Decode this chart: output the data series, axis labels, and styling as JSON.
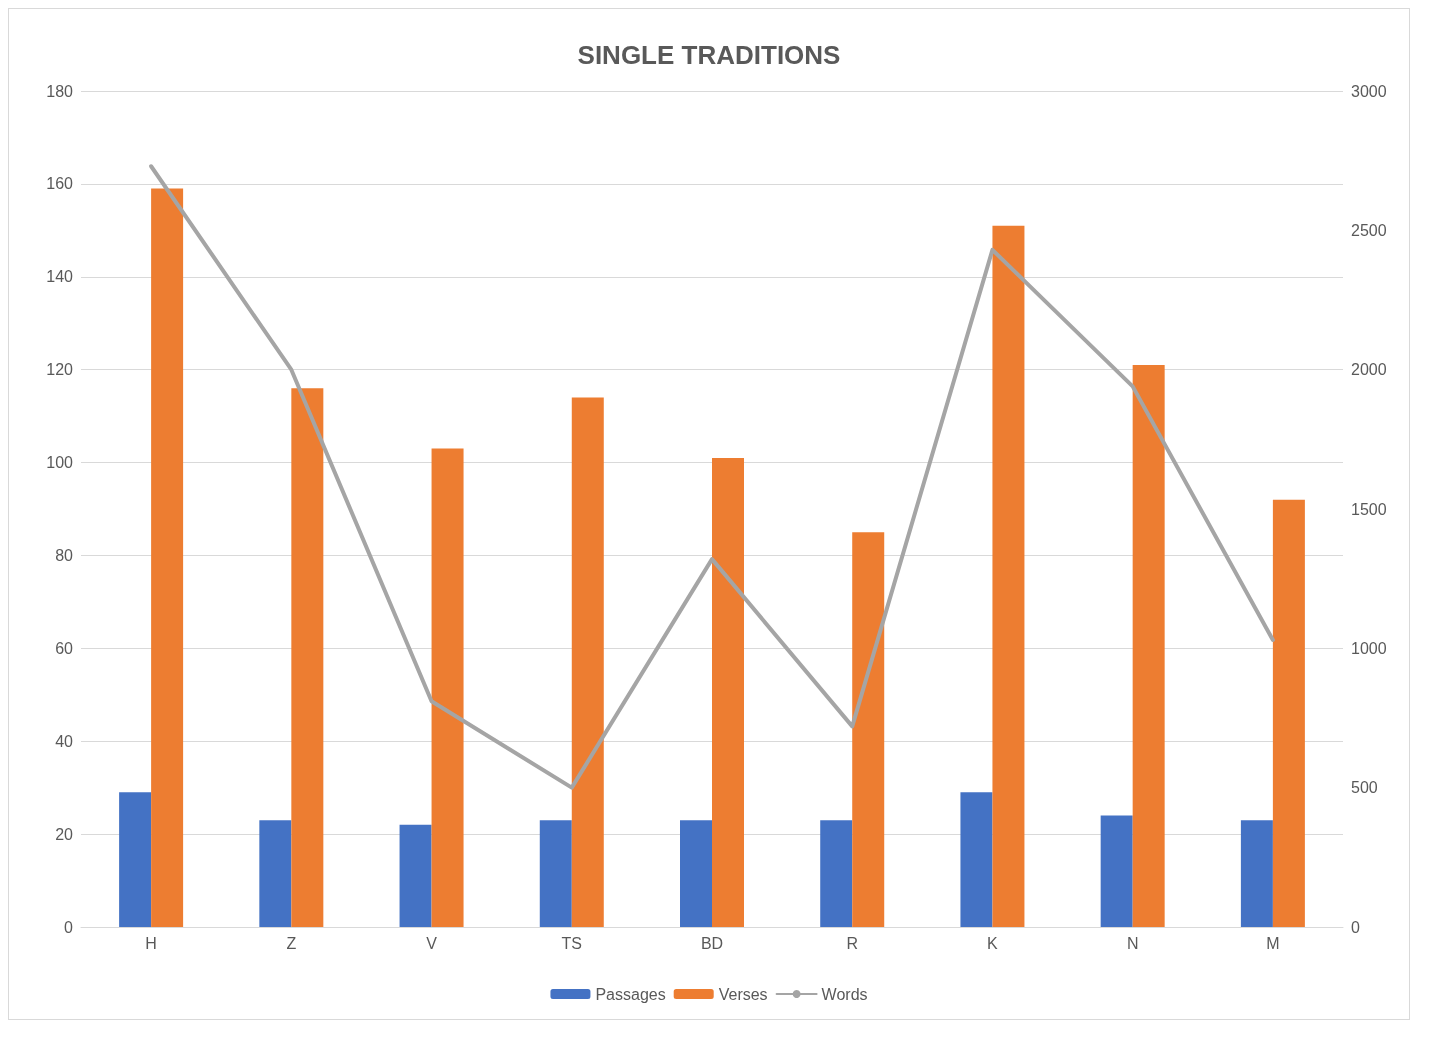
{
  "chart_data": {
    "type": "bar",
    "title": "SINGLE TRADITIONS",
    "categories": [
      "H",
      "Z",
      "V",
      "TS",
      "BD",
      "R",
      "K",
      "N",
      "M"
    ],
    "series": [
      {
        "name": "Passages",
        "color": "#4472c4",
        "values": [
          29,
          23,
          22,
          23,
          23,
          23,
          29,
          24,
          23
        ]
      },
      {
        "name": "Verses",
        "color": "#ed7d31",
        "values": [
          159,
          116,
          103,
          114,
          101,
          85,
          151,
          121,
          92
        ]
      },
      {
        "name": "Words",
        "type": "line",
        "axis": "y2",
        "color": "#a5a5a5",
        "values": [
          2730,
          2000,
          810,
          500,
          1320,
          720,
          2430,
          1940,
          1030
        ]
      }
    ],
    "ylim": [
      0,
      180
    ],
    "yticks": [
      0,
      20,
      40,
      60,
      80,
      100,
      120,
      140,
      160,
      180
    ],
    "y2lim": [
      0,
      3000
    ],
    "y2ticks": [
      0,
      500,
      1000,
      1500,
      2000,
      2500,
      3000
    ],
    "grid": "y",
    "legend": "bottom",
    "marker": "none",
    "line_style": "solid"
  }
}
